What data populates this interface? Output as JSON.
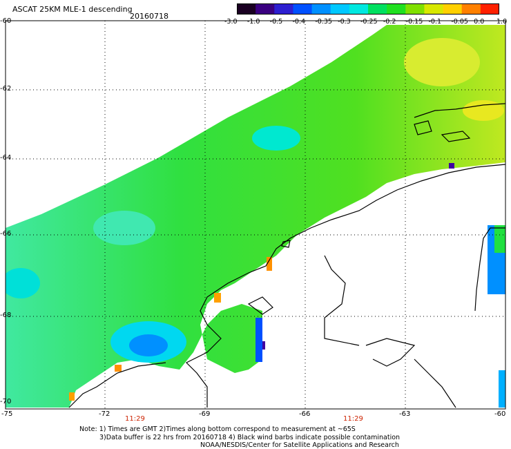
{
  "header": {
    "title": "ASCAT 25KM MLE-1 descending",
    "date": "20160718"
  },
  "colorbar": {
    "labels": [
      "-3.0",
      "-1.0",
      "-0.5",
      "-0.4",
      "-0.35",
      "-0.3",
      "-0.25",
      "-0.2",
      "-0.15",
      "-0.1",
      "-0.05",
      "0.0",
      "1.0"
    ],
    "colors": [
      "#1a0022",
      "#3a0080",
      "#2d1fd0",
      "#0050ff",
      "#0090ff",
      "#00c8ff",
      "#00e8e0",
      "#00e060",
      "#20e020",
      "#80e000",
      "#d8e800",
      "#ffd000",
      "#ff8000",
      "#ff2000"
    ]
  },
  "axes": {
    "y_labels": [
      "-60",
      "-62",
      "-64",
      "-66",
      "-68",
      "-70"
    ],
    "x_labels": [
      "-75",
      "-72",
      "-69",
      "-66",
      "-63",
      "-60"
    ],
    "time_labels": [
      "11:29",
      "11:29"
    ]
  },
  "notes": {
    "line1": "Note: 1) Times are GMT 2)Times along bottom correspond to measurement at ~65S",
    "line2": "3)Data buffer is 22 hrs from 20160718 4) Black wind barbs indicate possible contamination",
    "line3": "NOAA/NESDIS/Center for Satellite Applications and Research"
  }
}
